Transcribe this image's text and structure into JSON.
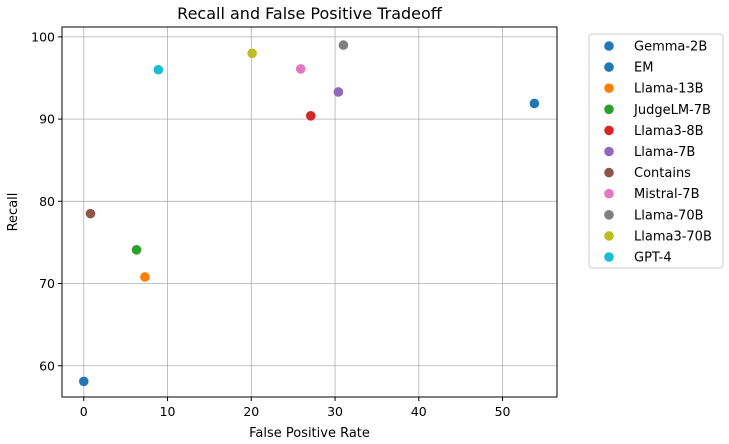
{
  "chart_data": {
    "type": "scatter",
    "title": "Recall and False Positive Tradeoff",
    "xlabel": "False Positive Rate",
    "ylabel": "Recall",
    "xlim": [
      -2.6,
      56.5
    ],
    "ylim": [
      56.2,
      101.2
    ],
    "xticks": [
      0,
      10,
      20,
      30,
      40,
      50
    ],
    "yticks": [
      60,
      70,
      80,
      90,
      100
    ],
    "grid": true,
    "legend_position": "outside-right",
    "series": [
      {
        "name": "Gemma-2B",
        "color": "#1f77b4",
        "x": 53.8,
        "y": 91.9
      },
      {
        "name": "EM",
        "color": "#1f77b4",
        "x": 0.0,
        "y": 58.1
      },
      {
        "name": "Llama-13B",
        "color": "#ff7f0e",
        "x": 7.3,
        "y": 70.8
      },
      {
        "name": "JudgeLM-7B",
        "color": "#2ca02c",
        "x": 6.3,
        "y": 74.1
      },
      {
        "name": "Llama3-8B",
        "color": "#d62728",
        "x": 27.1,
        "y": 90.4
      },
      {
        "name": "Llama-7B",
        "color": "#9467bd",
        "x": 30.4,
        "y": 93.3
      },
      {
        "name": "Contains",
        "color": "#8c564b",
        "x": 0.8,
        "y": 78.5
      },
      {
        "name": "Mistral-7B",
        "color": "#e377c2",
        "x": 25.9,
        "y": 96.1
      },
      {
        "name": "Llama-70B",
        "color": "#7f7f7f",
        "x": 31.0,
        "y": 99.0
      },
      {
        "name": "Llama3-70B",
        "color": "#bcbd22",
        "x": 20.1,
        "y": 98.0
      },
      {
        "name": "GPT-4",
        "color": "#17becf",
        "x": 8.9,
        "y": 96.0
      }
    ]
  }
}
